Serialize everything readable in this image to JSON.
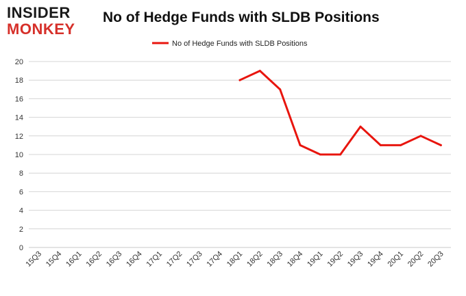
{
  "brand": {
    "line1": "INSIDER",
    "line2": "MONKEY"
  },
  "chart_data": {
    "type": "line",
    "title": "No of Hedge Funds with SLDB Positions",
    "xlabel": "",
    "ylabel": "",
    "categories": [
      "15Q3",
      "15Q4",
      "16Q1",
      "16Q2",
      "16Q3",
      "16Q4",
      "17Q1",
      "17Q2",
      "17Q3",
      "17Q4",
      "18Q1",
      "18Q2",
      "18Q3",
      "18Q4",
      "19Q1",
      "19Q2",
      "19Q3",
      "19Q4",
      "20Q1",
      "20Q2",
      "20Q3"
    ],
    "series": [
      {
        "name": "No of Hedge Funds with SLDB Positions",
        "color": "#e8150e",
        "values": [
          null,
          null,
          null,
          null,
          null,
          null,
          null,
          null,
          null,
          null,
          18,
          19,
          17,
          11,
          10,
          10,
          13,
          11,
          11,
          12,
          11
        ]
      }
    ],
    "ylim": [
      0,
      20
    ],
    "yticks": [
      0,
      2,
      4,
      6,
      8,
      10,
      12,
      14,
      16,
      18,
      20
    ],
    "grid": true,
    "legend_position": "top-center"
  }
}
